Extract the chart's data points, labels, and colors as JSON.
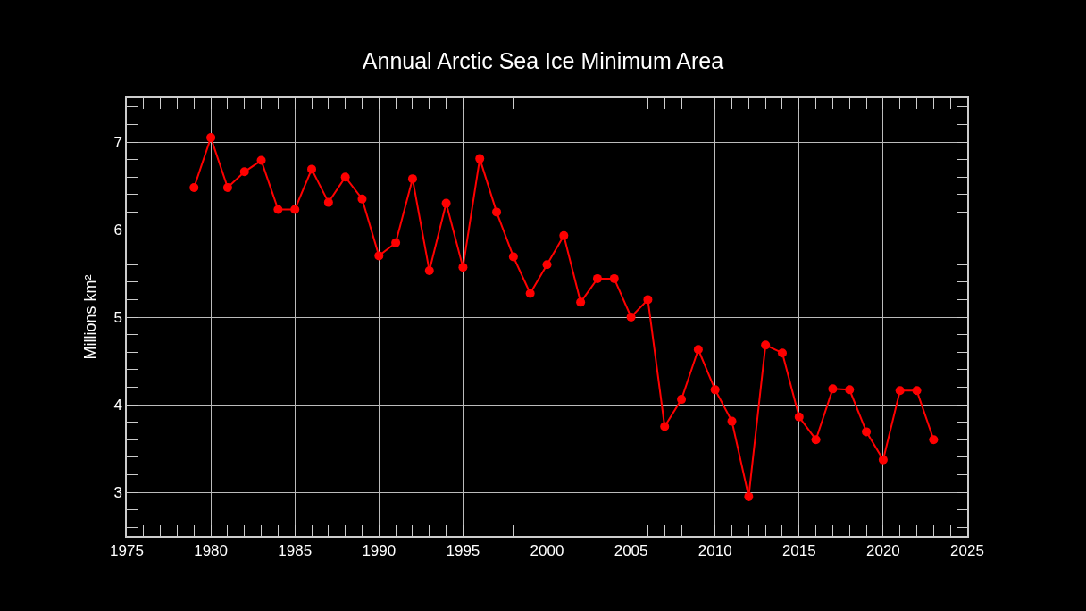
{
  "chart_data": {
    "type": "line",
    "title": "Annual Arctic Sea Ice Minimum Area",
    "ylabel": "Millions km²",
    "x": [
      1979,
      1980,
      1981,
      1982,
      1983,
      1984,
      1985,
      1986,
      1987,
      1988,
      1989,
      1990,
      1991,
      1992,
      1993,
      1994,
      1995,
      1996,
      1997,
      1998,
      1999,
      2000,
      2001,
      2002,
      2003,
      2004,
      2005,
      2006,
      2007,
      2008,
      2009,
      2010,
      2011,
      2012,
      2013,
      2014,
      2015,
      2016,
      2017,
      2018,
      2019,
      2020,
      2021,
      2022,
      2023
    ],
    "series": [
      {
        "color": "#ff0000",
        "values": [
          6.48,
          7.05,
          6.48,
          6.66,
          6.79,
          6.23,
          6.23,
          6.69,
          6.31,
          6.6,
          6.35,
          5.7,
          5.85,
          6.58,
          5.53,
          6.3,
          5.57,
          6.81,
          6.2,
          5.69,
          5.27,
          5.6,
          5.93,
          5.17,
          5.44,
          5.44,
          5.0,
          5.2,
          3.75,
          4.06,
          4.63,
          4.17,
          3.81,
          2.95,
          4.68,
          4.59,
          3.86,
          3.6,
          4.18,
          4.17,
          3.69,
          3.37,
          4.16,
          4.16,
          3.6
        ]
      }
    ],
    "xlim": [
      1975,
      2025
    ],
    "xticks": [
      1975,
      1980,
      1985,
      1990,
      1995,
      2000,
      2005,
      2010,
      2015,
      2020,
      2025
    ],
    "ylim": [
      2.5,
      7.5
    ],
    "yticks": [
      3,
      4,
      5,
      6,
      7
    ],
    "grid": true,
    "marker": "circle",
    "line_style": "solid"
  }
}
